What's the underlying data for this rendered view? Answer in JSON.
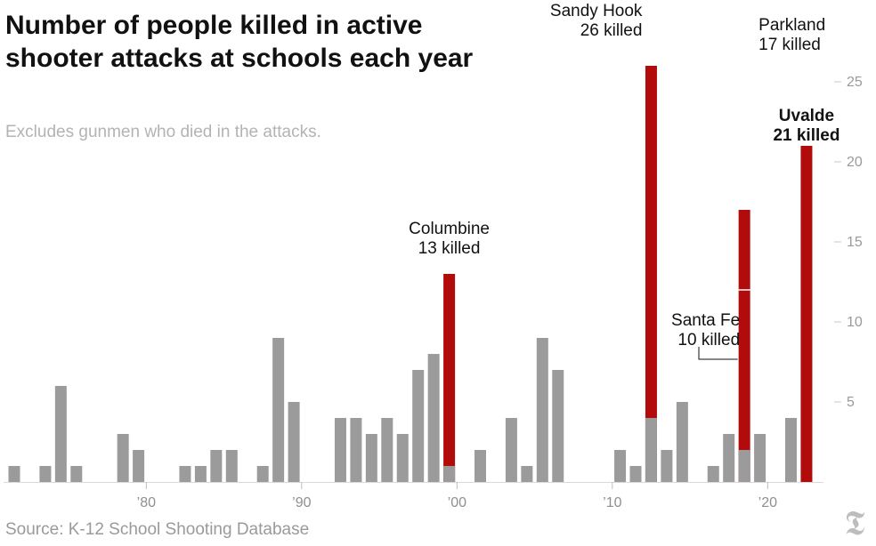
{
  "title": "Number of people killed in active shooter attacks at schools each year",
  "subtitle": "Excludes gunmen who died in the attacks.",
  "source": "Source: K-12 School Shooting Database",
  "colors": {
    "bar": "#9b9b9b",
    "highlight": "#b20b0b",
    "axis": "#d9d9d9",
    "tick_text": "#9a9a9a"
  },
  "logo_icon": "nyt-logo-icon",
  "chart_data": {
    "type": "bar",
    "title": "Number of people killed in active shooter attacks at schools each year",
    "subtitle": "Excludes gunmen who died in the attacks.",
    "xlabel": "",
    "ylabel": "",
    "ylim": [
      0,
      30
    ],
    "xlim": [
      1971,
      2022
    ],
    "yticks": [
      5,
      10,
      15,
      20,
      25
    ],
    "xticks": [
      {
        "year": 1980,
        "label": "’80"
      },
      {
        "year": 1990,
        "label": "’90"
      },
      {
        "year": 2000,
        "label": "’00"
      },
      {
        "year": 2010,
        "label": "’10"
      },
      {
        "year": 2020,
        "label": "’20"
      }
    ],
    "grid": false,
    "legend": "none",
    "series": [
      {
        "x": [
          1971,
          1973,
          1974,
          1975,
          1978,
          1979,
          1982,
          1983,
          1984,
          1985,
          1987,
          1988,
          1989,
          1992,
          1993,
          1994,
          1995,
          1996,
          1997,
          1998,
          1999,
          2001,
          2003,
          2004,
          2005,
          2006,
          2010,
          2011,
          2012,
          2013,
          2014,
          2016,
          2017,
          2018,
          2019,
          2021
        ],
        "values": [
          1,
          1,
          6,
          1,
          3,
          2,
          1,
          1,
          2,
          2,
          1,
          9,
          5,
          4,
          4,
          3,
          4,
          3,
          7,
          8,
          1,
          2,
          4,
          1,
          9,
          7,
          2,
          1,
          4,
          2,
          5,
          1,
          3,
          2,
          3,
          4
        ]
      },
      {
        "x": [
          1999,
          2012,
          2018,
          2022
        ],
        "values": [
          13,
          26,
          17,
          21
        ],
        "highlight": true
      }
    ],
    "annotations": [
      {
        "year": 1999,
        "lines": [
          "Columbine",
          "13 killed"
        ],
        "bold": false
      },
      {
        "year": 2012,
        "lines": [
          "Sandy Hook",
          "26 killed"
        ],
        "bold": false
      },
      {
        "year": 2018,
        "lines": [
          "Parkland",
          "17 killed"
        ],
        "bold": false
      },
      {
        "year": 2018,
        "lines": [
          "Santa Fe",
          "10 killed"
        ],
        "bold": false
      },
      {
        "year": 2022,
        "lines": [
          "Uvalde",
          "21 killed"
        ],
        "bold": true
      }
    ]
  }
}
